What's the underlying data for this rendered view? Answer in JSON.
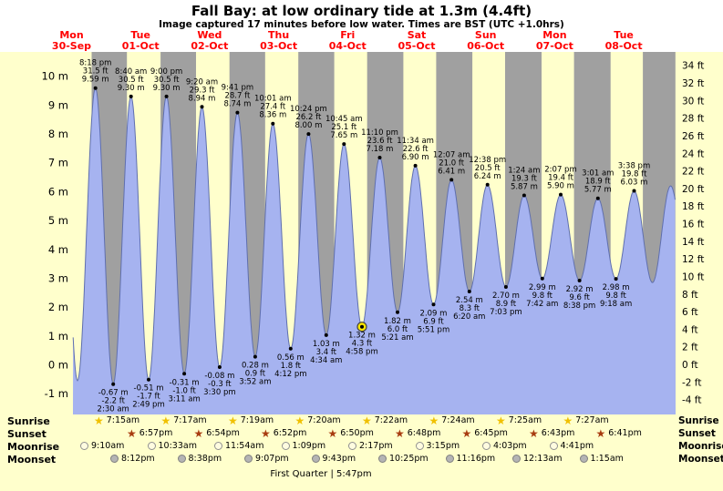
{
  "chart_data": {
    "type": "area",
    "title": "Fall Bay: at low  ordinary tide at 1.3m (4.4ft)",
    "subtitle": "Image captured 17 minutes before low water. Times are BST (UTC +1.0hrs)",
    "days": [
      {
        "name": "Mon",
        "date": "30-Sep"
      },
      {
        "name": "Tue",
        "date": "01-Oct"
      },
      {
        "name": "Wed",
        "date": "02-Oct"
      },
      {
        "name": "Thu",
        "date": "03-Oct"
      },
      {
        "name": "Fri",
        "date": "04-Oct"
      },
      {
        "name": "Sat",
        "date": "05-Oct"
      },
      {
        "name": "Sun",
        "date": "06-Oct"
      },
      {
        "name": "Mon",
        "date": "07-Oct"
      },
      {
        "name": "Tue",
        "date": "08-Oct"
      }
    ],
    "y_axis_left": {
      "unit": "m",
      "ticks": [
        10,
        9,
        8,
        7,
        6,
        5,
        4,
        3,
        2,
        1,
        0,
        -1
      ]
    },
    "y_axis_right": {
      "unit": "ft",
      "ticks": [
        34,
        32,
        30,
        28,
        26,
        24,
        22,
        20,
        18,
        16,
        14,
        12,
        10,
        8,
        6,
        4,
        2,
        0,
        -2,
        -4
      ]
    },
    "ylim_m": [
      -1.72,
      10.84
    ],
    "x_range_days": [
      0.52,
      9.25
    ],
    "night_bands": [
      [
        0.791,
        1.302
      ],
      [
        1.79,
        2.304
      ],
      [
        2.788,
        3.305
      ],
      [
        3.786,
        4.306
      ],
      [
        4.783,
        5.307
      ],
      [
        5.783,
        6.308
      ],
      [
        6.781,
        7.309
      ],
      [
        7.78,
        8.31
      ],
      [
        8.778,
        9.312
      ]
    ],
    "extremes": [
      {
        "t": 0.33,
        "v": 9.7,
        "phantom": true
      },
      {
        "t": 0.586,
        "v": -0.55,
        "phantom": true
      },
      {
        "t": 0.846,
        "v": 9.59,
        "kind": "high",
        "lines": [
          "8:18 pm",
          "31.5 ft",
          "9.59 m"
        ]
      },
      {
        "t": 1.104,
        "v": -0.67,
        "kind": "low",
        "lines": [
          "-0.67 m",
          "-2.2 ft",
          "2:30 am"
        ]
      },
      {
        "t": 1.361,
        "v": 9.3,
        "kind": "high",
        "lines": [
          "8:40 am",
          "30.5 ft",
          "9.30 m"
        ]
      },
      {
        "t": 1.617,
        "v": -0.51,
        "kind": "low",
        "lines": [
          "-0.51 m",
          "-1.7 ft",
          "2:49 pm"
        ]
      },
      {
        "t": 1.875,
        "v": 9.3,
        "kind": "high",
        "lines": [
          "9:00 pm",
          "30.5 ft",
          "9.30 m"
        ]
      },
      {
        "t": 2.133,
        "v": -0.31,
        "kind": "low",
        "lines": [
          "-0.31 m",
          "-1.0 ft",
          "3:11 am"
        ]
      },
      {
        "t": 2.389,
        "v": 8.94,
        "kind": "high",
        "lines": [
          "9:20 am",
          "29.3 ft",
          "8.94 m"
        ]
      },
      {
        "t": 2.646,
        "v": -0.08,
        "kind": "low",
        "lines": [
          "-0.08 m",
          "-0.3 ft",
          "3:30 pm"
        ]
      },
      {
        "t": 2.903,
        "v": 8.74,
        "kind": "high",
        "lines": [
          "9:41 pm",
          "28.7 ft",
          "8.74 m"
        ]
      },
      {
        "t": 3.161,
        "v": 0.28,
        "kind": "low",
        "lines": [
          "0.28 m",
          "0.9 ft",
          "3:52 am"
        ]
      },
      {
        "t": 3.417,
        "v": 8.36,
        "kind": "high",
        "lines": [
          "10:01 am",
          "27.4 ft",
          "8.36 m"
        ]
      },
      {
        "t": 3.675,
        "v": 0.56,
        "kind": "low",
        "lines": [
          "0.56 m",
          "1.8 ft",
          "4:12 pm"
        ]
      },
      {
        "t": 3.933,
        "v": 8.0,
        "kind": "high",
        "lines": [
          "10:24 pm",
          "26.2 ft",
          "8.00 m"
        ]
      },
      {
        "t": 4.19,
        "v": 1.03,
        "kind": "low",
        "lines": [
          "1.03 m",
          "3.4 ft",
          "4:34 am"
        ]
      },
      {
        "t": 4.448,
        "v": 7.65,
        "kind": "high",
        "lines": [
          "10:45 am",
          "25.1 ft",
          "7.65 m"
        ]
      },
      {
        "t": 4.707,
        "v": 1.32,
        "kind": "low",
        "current": true,
        "lines": [
          "1.32 m",
          "4.3 ft",
          "4:58 pm"
        ]
      },
      {
        "t": 4.965,
        "v": 7.18,
        "kind": "high",
        "lines": [
          "11:10 pm",
          "23.6 ft",
          "7.18 m"
        ]
      },
      {
        "t": 5.223,
        "v": 1.82,
        "kind": "low",
        "lines": [
          "1.82 m",
          "6.0 ft",
          "5:21 am"
        ]
      },
      {
        "t": 5.482,
        "v": 6.9,
        "kind": "high",
        "lines": [
          "11:34 am",
          "22.6 ft",
          "6.90 m"
        ]
      },
      {
        "t": 5.744,
        "v": 2.09,
        "kind": "low",
        "lines": [
          "2.09 m",
          "6.9 ft",
          "5:51 pm"
        ]
      },
      {
        "t": 6.005,
        "v": 6.41,
        "kind": "high",
        "lines": [
          "12:07 am",
          "21.0 ft",
          "6.41 m"
        ]
      },
      {
        "t": 6.264,
        "v": 2.54,
        "kind": "low",
        "lines": [
          "2.54 m",
          "8.3 ft",
          "6:20 am"
        ]
      },
      {
        "t": 6.526,
        "v": 6.24,
        "kind": "high",
        "lines": [
          "12:38 pm",
          "20.5 ft",
          "6.24 m"
        ]
      },
      {
        "t": 6.794,
        "v": 2.7,
        "kind": "low",
        "lines": [
          "2.70 m",
          "8.9 ft",
          "7:03 pm"
        ]
      },
      {
        "t": 7.058,
        "v": 5.87,
        "kind": "high",
        "lines": [
          "1:24 am",
          "19.3 ft",
          "5.87 m"
        ]
      },
      {
        "t": 7.321,
        "v": 2.99,
        "kind": "low",
        "lines": [
          "2.99 m",
          "9.8 ft",
          "7:42 am"
        ]
      },
      {
        "t": 7.588,
        "v": 5.9,
        "kind": "high",
        "lines": [
          "2:07 pm",
          "19.4 ft",
          "5.90 m"
        ]
      },
      {
        "t": 7.86,
        "v": 2.92,
        "kind": "low",
        "lines": [
          "2.92 m",
          "9.6 ft",
          "8:38 pm"
        ]
      },
      {
        "t": 8.126,
        "v": 5.77,
        "kind": "high",
        "lines": [
          "3:01 am",
          "18.9 ft",
          "5.77 m"
        ]
      },
      {
        "t": 8.388,
        "v": 2.98,
        "kind": "low",
        "lines": [
          "2.98 m",
          "9.8 ft",
          "9:18 am"
        ]
      },
      {
        "t": 8.651,
        "v": 6.03,
        "kind": "high",
        "lines": [
          "3:38 pm",
          "19.8 ft",
          "6.03 m"
        ]
      },
      {
        "t": 8.917,
        "v": 2.85,
        "phantom": true
      },
      {
        "t": 9.18,
        "v": 6.2,
        "phantom": true
      },
      {
        "t": 9.44,
        "v": 2.95,
        "phantom": true
      }
    ],
    "colors": {
      "header_bg": "#ffffff",
      "day_band": "#ffffcc",
      "night_band": "#a0a0a0",
      "tide_fill": "#a6b3f0",
      "tide_stroke": "#5f6fae",
      "date_label": "#ff0000",
      "current_marker": "#ffe800"
    }
  },
  "astro": {
    "rows": [
      {
        "id": "sunrise",
        "label": "Sunrise",
        "icon": "sunrise-star-icon",
        "shape": "star",
        "glyph": "★",
        "times": [
          "7:15am",
          "7:17am",
          "7:19am",
          "7:20am",
          "7:22am",
          "7:24am",
          "7:25am",
          "7:27am"
        ]
      },
      {
        "id": "sunset",
        "label": "Sunset",
        "icon": "sunset-star-icon",
        "shape": "star",
        "glyph": "★",
        "times": [
          "6:57pm",
          "6:54pm",
          "6:52pm",
          "6:50pm",
          "6:48pm",
          "6:45pm",
          "6:43pm",
          "6:41pm"
        ]
      },
      {
        "id": "moonrise",
        "label": "Moonrise",
        "icon": "moonrise-circle-icon",
        "shape": "disc",
        "glyph": "",
        "times": [
          "9:10am",
          "10:33am",
          "11:54am",
          "1:09pm",
          "2:17pm",
          "3:15pm",
          "4:03pm",
          "4:41pm"
        ]
      },
      {
        "id": "moonset",
        "label": "Moonset",
        "icon": "moonset-circle-icon",
        "shape": "disc",
        "glyph": "",
        "times": [
          "8:12pm",
          "8:38pm",
          "9:07pm",
          "9:43pm",
          "10:25pm",
          "11:16pm",
          "12:13am",
          "1:15am"
        ]
      }
    ],
    "moon_phase": {
      "name": "First Quarter",
      "separator": "|",
      "time": "5:47pm"
    }
  }
}
